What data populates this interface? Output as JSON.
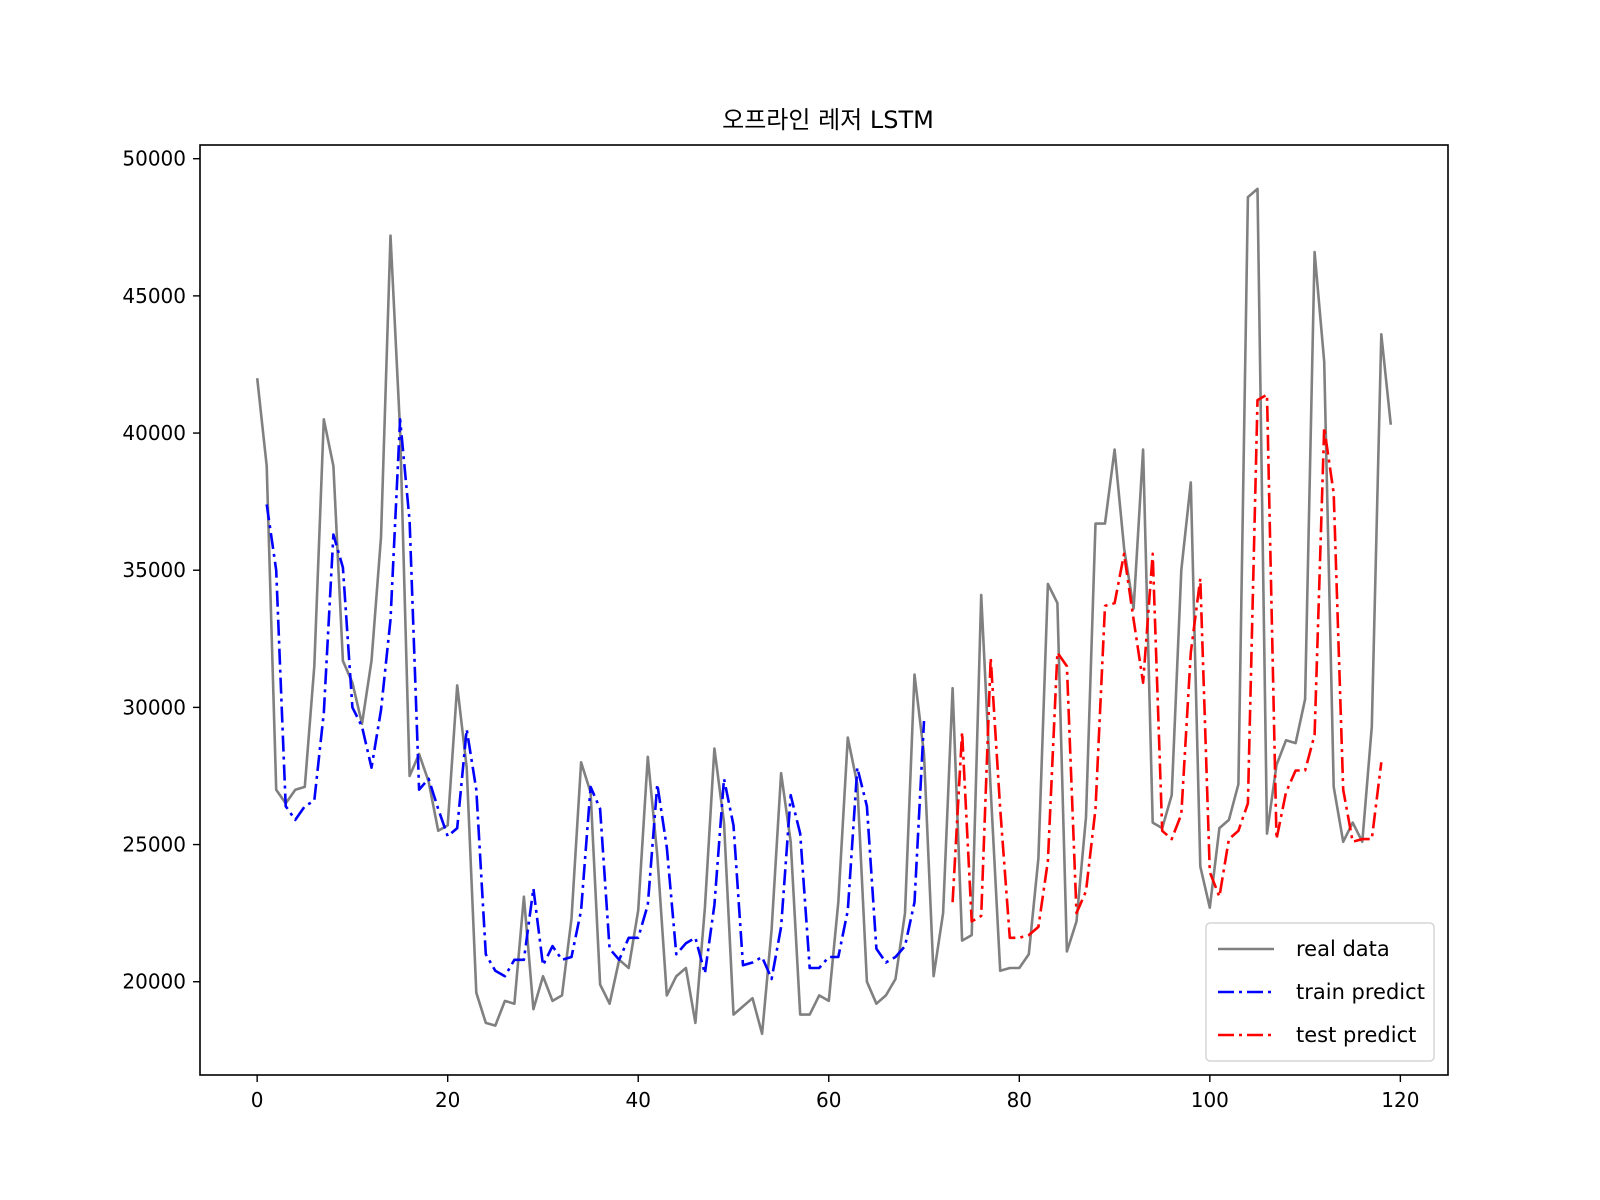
{
  "chart_data": {
    "type": "line",
    "title": "오프라인 레저 LSTM",
    "xlabel": "",
    "ylabel": "",
    "xlim": [
      -6,
      125
    ],
    "ylim": [
      16600,
      50500
    ],
    "xticks": [
      0,
      20,
      40,
      60,
      80,
      100,
      120
    ],
    "yticks": [
      20000,
      25000,
      30000,
      35000,
      40000,
      45000,
      50000
    ],
    "grid": false,
    "legend_position": "bottom-right",
    "series": [
      {
        "name": "real data",
        "color": "#808080",
        "style": "solid",
        "x_start": 0,
        "values": [
          42000,
          38800,
          27000,
          26500,
          27000,
          27100,
          31500,
          40500,
          38800,
          31700,
          30900,
          29400,
          31700,
          36200,
          47200,
          40100,
          27500,
          28300,
          27300,
          25500,
          25700,
          30800,
          27800,
          19600,
          18500,
          18400,
          19300,
          19200,
          23100,
          19000,
          20200,
          19300,
          19500,
          22300,
          28000,
          26900,
          19900,
          19200,
          20800,
          20500,
          22600,
          28200,
          24600,
          19500,
          20200,
          20500,
          18500,
          22700,
          28500,
          25800,
          18800,
          19100,
          19400,
          18100,
          21900,
          27600,
          25100,
          18800,
          18800,
          19500,
          19300,
          22900,
          28900,
          27200,
          20000,
          19200,
          19500,
          20100,
          22500,
          31200,
          28300,
          20200,
          22500,
          30700,
          21500,
          21700,
          34100,
          27000,
          20400,
          20500,
          20500,
          21000,
          24500,
          34500,
          33800,
          21100,
          22200,
          26000,
          36700,
          36700,
          39400,
          35800,
          33600,
          39400,
          25800,
          25600,
          26800,
          35000,
          38200,
          24200,
          22700,
          25600,
          25900,
          27200,
          48600,
          48900,
          25400,
          27900,
          28800,
          28700,
          30300,
          46600,
          42600,
          27100,
          25100,
          25800,
          25100,
          29300,
          43600,
          40300
        ]
      },
      {
        "name": "train predict",
        "color": "#0000ff",
        "style": "dashdot",
        "x_start": 1,
        "values": [
          37400,
          35000,
          26400,
          25900,
          26400,
          26600,
          29800,
          36300,
          35100,
          30000,
          29300,
          27800,
          29900,
          33200,
          40500,
          36800,
          27000,
          27400,
          26300,
          25300,
          25600,
          29200,
          27000,
          21000,
          20400,
          20200,
          20800,
          20800,
          23400,
          20600,
          21300,
          20800,
          20900,
          22600,
          27100,
          26300,
          21200,
          20800,
          21600,
          21600,
          22800,
          27200,
          24900,
          21000,
          21400,
          21600,
          20300,
          22800,
          27400,
          25700,
          20600,
          20700,
          20900,
          20100,
          22000,
          26800,
          25400,
          20500,
          20500,
          20900,
          20900,
          22600,
          27800,
          26400,
          21200,
          20700,
          20900,
          21300,
          22900,
          29500
        ]
      },
      {
        "name": "test predict",
        "color": "#ff0000",
        "style": "dashdot",
        "x_start": 73,
        "values": [
          22900,
          29100,
          22200,
          22400,
          31800,
          26300,
          21600,
          21600,
          21700,
          22000,
          24400,
          32000,
          31500,
          22500,
          23300,
          26300,
          33700,
          33800,
          35600,
          33200,
          30900,
          35600,
          25500,
          25200,
          26100,
          32000,
          34700,
          24000,
          23100,
          25200,
          25500,
          26500,
          41200,
          41400,
          25200,
          26900,
          27700,
          27700,
          29000,
          40200,
          37800,
          27000,
          25100,
          25200,
          25200,
          28000
        ]
      }
    ]
  }
}
